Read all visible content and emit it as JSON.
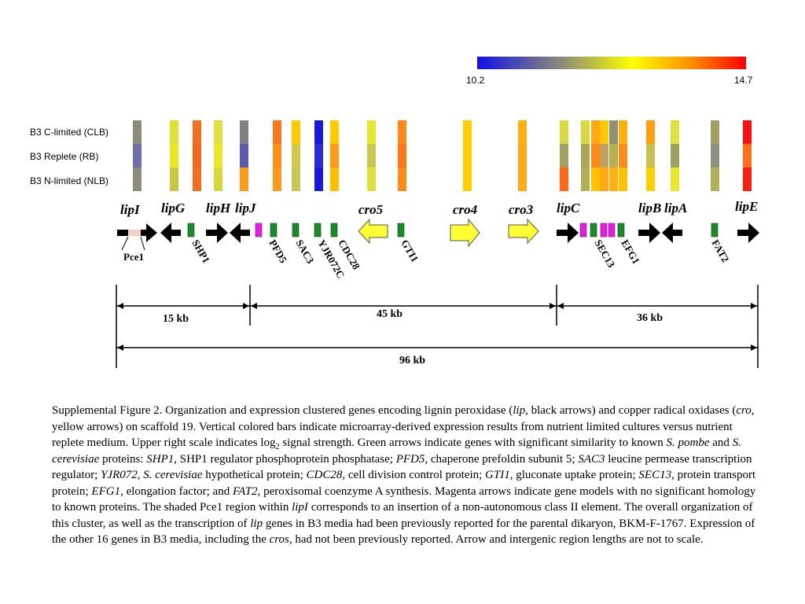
{
  "color_scale": {
    "min_label": "10.2",
    "max_label": "14.7",
    "stops": [
      "#1010e8",
      "#9a9a6a",
      "#ffff00",
      "#ff8c00",
      "#ff0000"
    ]
  },
  "conditions": [
    "B3 C-limited (CLB)",
    "B3 Replete (RB)",
    "B3 N-limited (NLB)"
  ],
  "heat_columns": [
    {
      "colors": [
        "#8c8c78",
        "#6e6ea8",
        "#8c8c78"
      ]
    },
    {
      "colors": [
        "#e0e030",
        "#e8e820",
        "#c8c840"
      ]
    },
    {
      "colors": [
        "#f07020",
        "#f06820",
        "#f07020"
      ]
    },
    {
      "colors": [
        "#e0e040",
        "#e8e828",
        "#d8d838"
      ]
    },
    {
      "colors": [
        "#808080",
        "#5a5ab0",
        "#ff9a18"
      ]
    },
    {
      "colors": [
        "#f87820",
        "#ff9018",
        "#ff9818"
      ]
    },
    {
      "colors": [
        "#ffc800",
        "#d0c848",
        "#c8c850"
      ]
    },
    {
      "colors": [
        "#1818e0",
        "#2a2ad8",
        "#1818e0"
      ]
    },
    {
      "colors": [
        "#ffcc00",
        "#ff9818",
        "#ffc000"
      ]
    },
    {
      "colors": [
        "#e8e830",
        "#c8c850",
        "#e0e040"
      ]
    },
    {
      "colors": [
        "#ff8818",
        "#ff7818",
        "#ff8c18"
      ]
    },
    {
      "colors": [
        "#ffd000",
        "#ffd000",
        "#ffd000"
      ]
    },
    {
      "colors": [
        "#ffb010",
        "#ffa818",
        "#ffa818"
      ]
    },
    {
      "colors": [
        "#d8d840",
        "#a0a060",
        "#ff6818"
      ]
    },
    {
      "colors": [
        "#d8d840",
        "#a8a858",
        "#b0b058"
      ]
    },
    {
      "colors": [
        "#ffa818",
        "#ff8818",
        "#ffc000"
      ]
    },
    {
      "colors": [
        "#ffc800",
        "#c0a060",
        "#ffa818"
      ]
    },
    {
      "colors": [
        "#909078",
        "#b8b050",
        "#ffb010"
      ]
    },
    {
      "colors": [
        "#ffb010",
        "#ff8c18",
        "#ffc000"
      ]
    },
    {
      "colors": [
        "#ffa010",
        "#c8c050",
        "#ffd000"
      ]
    },
    {
      "colors": [
        "#e0e040",
        "#a0a060",
        "#e8e828"
      ]
    },
    {
      "colors": [
        "#a0a060",
        "#909080",
        "#b0b058"
      ]
    },
    {
      "colors": [
        "#ff1010",
        "#ff7018",
        "#ff2010"
      ]
    }
  ],
  "gene_labels": {
    "lipI": "lipI",
    "lipG": "lipG",
    "lipH": "lipH",
    "lipJ": "lipJ",
    "cro5": "cro5",
    "cro4": "cro4",
    "cro3": "cro3",
    "lipC": "lipC",
    "lipB": "lipB",
    "lipA": "lipA",
    "lipE": "lipE"
  },
  "homolog_labels": {
    "pce1": "Pce1",
    "shp1": "SHP1",
    "pfd5": "PFD5",
    "sac3": "SAC3",
    "yjr072c": "YJR072C",
    "cdc28": "CDC28",
    "gti1": "GTI1",
    "sec13": "SEC13",
    "efg1": "EFG1",
    "fat2": "FAT2"
  },
  "distances": {
    "d1": "15 kb",
    "d2": "45 kb",
    "d3": "36 kb",
    "total": "96 kb"
  },
  "colors": {
    "lip_arrow": "#000000",
    "cro_arrow": "#ffff33",
    "homolog_arrow": "#1a8a2a",
    "novel_arrow": "#e020e0",
    "pce1_region": "#f5cfc0"
  },
  "caption": {
    "p01": "Supplemental Figure 2. Organization and expression clustered genes encoding lignin peroxidase (",
    "i01": "lip,",
    "p02": " black arrows) and copper radical oxidases (",
    "i02": "cro,",
    "p03": " yellow arrows) on scaffold 19. Vertical colored bars indicate microarray-derived expression results from nutrient limited cultures versus nutrient replete medium.  Upper right scale indicates log",
    "sub1": "2",
    "p04": " signal strength. Green arrows indicate genes with significant similarity to known ",
    "i03": "S. pombe",
    "p05": " and ",
    "i04": "S. cerevisiae",
    "p06": " proteins: ",
    "i05": "SHP1",
    "p07": ", SHP1 regulator phosphoprotein phosphatase; ",
    "i06": "PFD5",
    "p08": ", chaperone prefoldin subunit 5; ",
    "i07": "SAC3",
    "p09": " leucine permease transcription regulator; ",
    "i08": "YJR072",
    "p10": ", ",
    "i09": "S. cerevisiae",
    "p11": " hypothetical protein; ",
    "i10": "CDC28",
    "p12": ", cell division control protein; ",
    "i11": "GTI1",
    "p13": ", gluconate uptake protein; ",
    "i12": "SEC13",
    "p14": ", protein transport protein; ",
    "i13": "EFG1",
    "p15": ", elongation factor; and ",
    "i14": "FAT2",
    "p16": ", peroxisomal coenzyme A synthesis.  Magenta arrows indicate gene models with no significant homology to known proteins.  The shaded Pce1 region within ",
    "i15": "lipI",
    "p17": " corresponds to an insertion of a non-autonomous class II element.  The overall organization of this cluster, as well as the transcription of ",
    "i16": "lip",
    "p18": " genes in B3 media had been previously reported for the parental dikaryon, BKM-F-1767.  Expression of the other 16 genes in B3 media, including the ",
    "i17": "cros",
    "p19": ", had not been previously reported. Arrow and intergenic region lengths are not to scale."
  }
}
